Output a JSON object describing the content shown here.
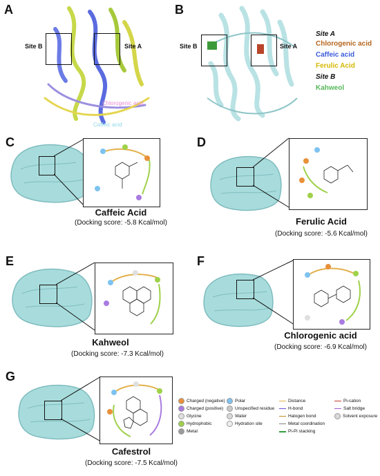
{
  "panels": {
    "A": {
      "label": "A",
      "site_b": "Site B",
      "site_a": "Site A",
      "overlay_top": "Chlorogenic acid",
      "overlay_bottom": "Caffeic acid"
    },
    "B": {
      "label": "B",
      "site_b": "Site B",
      "site_a": "Site A"
    },
    "C": {
      "label": "C",
      "title": "Caffeic Acid",
      "score": "(Docking score: -5.8 Kcal/mol)"
    },
    "D": {
      "label": "D",
      "title": "Ferulic Acid",
      "score": "(Docking score: -5.6 Kcal/mol)"
    },
    "E": {
      "label": "E",
      "title": "Kahweol",
      "score": "(Docking score: -7.3 Kcal/mol)"
    },
    "F": {
      "label": "F",
      "title": "Chlorogenic acid",
      "score": "(Docking score: -6.9 Kcal/mol)"
    },
    "G": {
      "label": "G",
      "title": "Cafestrol",
      "score": "(Docking score: -7.5 Kcal/mol)"
    }
  },
  "legend_ab": {
    "site_a": "Site A",
    "ligands_a": [
      {
        "name": "Chlorogenic acid",
        "color": "#b5651d"
      },
      {
        "name": "Caffeic acid",
        "color": "#3a5bd9"
      },
      {
        "name": "Ferulic Acid",
        "color": "#d4b800"
      }
    ],
    "site_b": "Site B",
    "ligands_b": [
      {
        "name": "Kahweol",
        "color": "#55b85a"
      }
    ]
  },
  "interaction_key": {
    "col1": [
      {
        "label": "Charged (negative)",
        "color": "#e8913a"
      },
      {
        "label": "Charged (positive)",
        "color": "#a97be0"
      },
      {
        "label": "Glycine",
        "color": "#e0e0e0"
      },
      {
        "label": "Hydrophobic",
        "color": "#9fd14a"
      },
      {
        "label": "Metal",
        "color": "#9a9a9a"
      }
    ],
    "col2": [
      {
        "label": "Polar",
        "color": "#7ec3f0"
      },
      {
        "label": "Unspecified residue",
        "color": "#c9c9c9"
      },
      {
        "label": "Water",
        "color": "#d8d8d8"
      },
      {
        "label": "Hydration site",
        "color": "#eeeeee"
      }
    ],
    "col3": [
      {
        "label": "Distance",
        "color": "#e2b04a"
      },
      {
        "label": "H-bond",
        "color": "#6a4fd8"
      },
      {
        "label": "Halogen bond",
        "color": "#c48c1c"
      },
      {
        "label": "Metal coordination",
        "color": "#7f7f7f"
      },
      {
        "label": "Pi-Pi stacking",
        "color": "#2e9d3a"
      }
    ],
    "col4": [
      {
        "label": "Pi-cation",
        "color": "#c0392b"
      },
      {
        "label": "Salt bridge",
        "color": "#a05ad0"
      },
      {
        "label": "Solvent exposure",
        "color": "#d9d9d9"
      }
    ]
  },
  "colors": {
    "protein_surface": "#a8dcdc",
    "protein_surface_dark": "#7fbcbf",
    "protein_ribbon": "#bfe6e8"
  }
}
